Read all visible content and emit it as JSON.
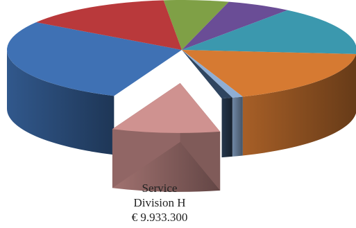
{
  "chart_data": {
    "type": "pie",
    "style": "3d-exploded",
    "slices": [
      {
        "value": 6,
        "color": "#7fa046"
      },
      {
        "value": 6,
        "color": "#6a4d96"
      },
      {
        "value": 16,
        "color": "#3b98ae"
      },
      {
        "value": 18,
        "color": "#d67a32"
      },
      {
        "value": 1,
        "color": "#8faed4"
      },
      {
        "value": 1,
        "color": "#2f4560"
      },
      {
        "value": 10,
        "color": "#cf9290",
        "exploded": true
      },
      {
        "value": 28,
        "color": "#3f71b4"
      },
      {
        "value": 14,
        "color": "#b9393b"
      }
    ],
    "callout": {
      "line1": "Service",
      "line2": "Division H",
      "line3": "€ 9.933.300"
    }
  }
}
